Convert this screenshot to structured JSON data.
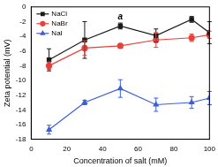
{
  "chart_data": {
    "type": "line",
    "x_label": "Concentration of salt (mM)",
    "y_label": "Zeta potential (mV)",
    "x": [
      10,
      30,
      50,
      70,
      90,
      100
    ],
    "series": [
      {
        "name": "NaCl",
        "color": "#1a1a1a",
        "marker": "square",
        "values": [
          -7.2,
          -4.5,
          -2.6,
          -3.9,
          -1.7,
          -3.5
        ],
        "errors": [
          1.5,
          2.5,
          0.4,
          0.9,
          0.4,
          1.5
        ]
      },
      {
        "name": "NaBr",
        "color": "#e8413c",
        "marker": "circle",
        "values": [
          -8.0,
          -5.6,
          -5.3,
          -4.5,
          -4.2,
          -3.8
        ],
        "errors": [
          0.5,
          1.0,
          0.3,
          1.0,
          0.5,
          0.5
        ]
      },
      {
        "name": "NaI",
        "color": "#3b5fd6",
        "marker": "triangle",
        "values": [
          -16.7,
          -13.0,
          -11.1,
          -13.3,
          -13.0,
          -12.4
        ],
        "errors": [
          0.6,
          0.3,
          1.2,
          0.9,
          0.8,
          0.9
        ]
      }
    ],
    "annotations": [
      {
        "text": "a",
        "x": 50,
        "y": -1.4
      }
    ],
    "xlim": [
      0,
      100
    ],
    "xticks": [
      0,
      20,
      40,
      60,
      80,
      100
    ],
    "ylim": [
      -18,
      0
    ],
    "yticks": [
      -18,
      -16,
      -14,
      -12,
      -10,
      -8,
      -6,
      -4,
      -2,
      0
    ],
    "legend": "upper left",
    "grid": false
  }
}
